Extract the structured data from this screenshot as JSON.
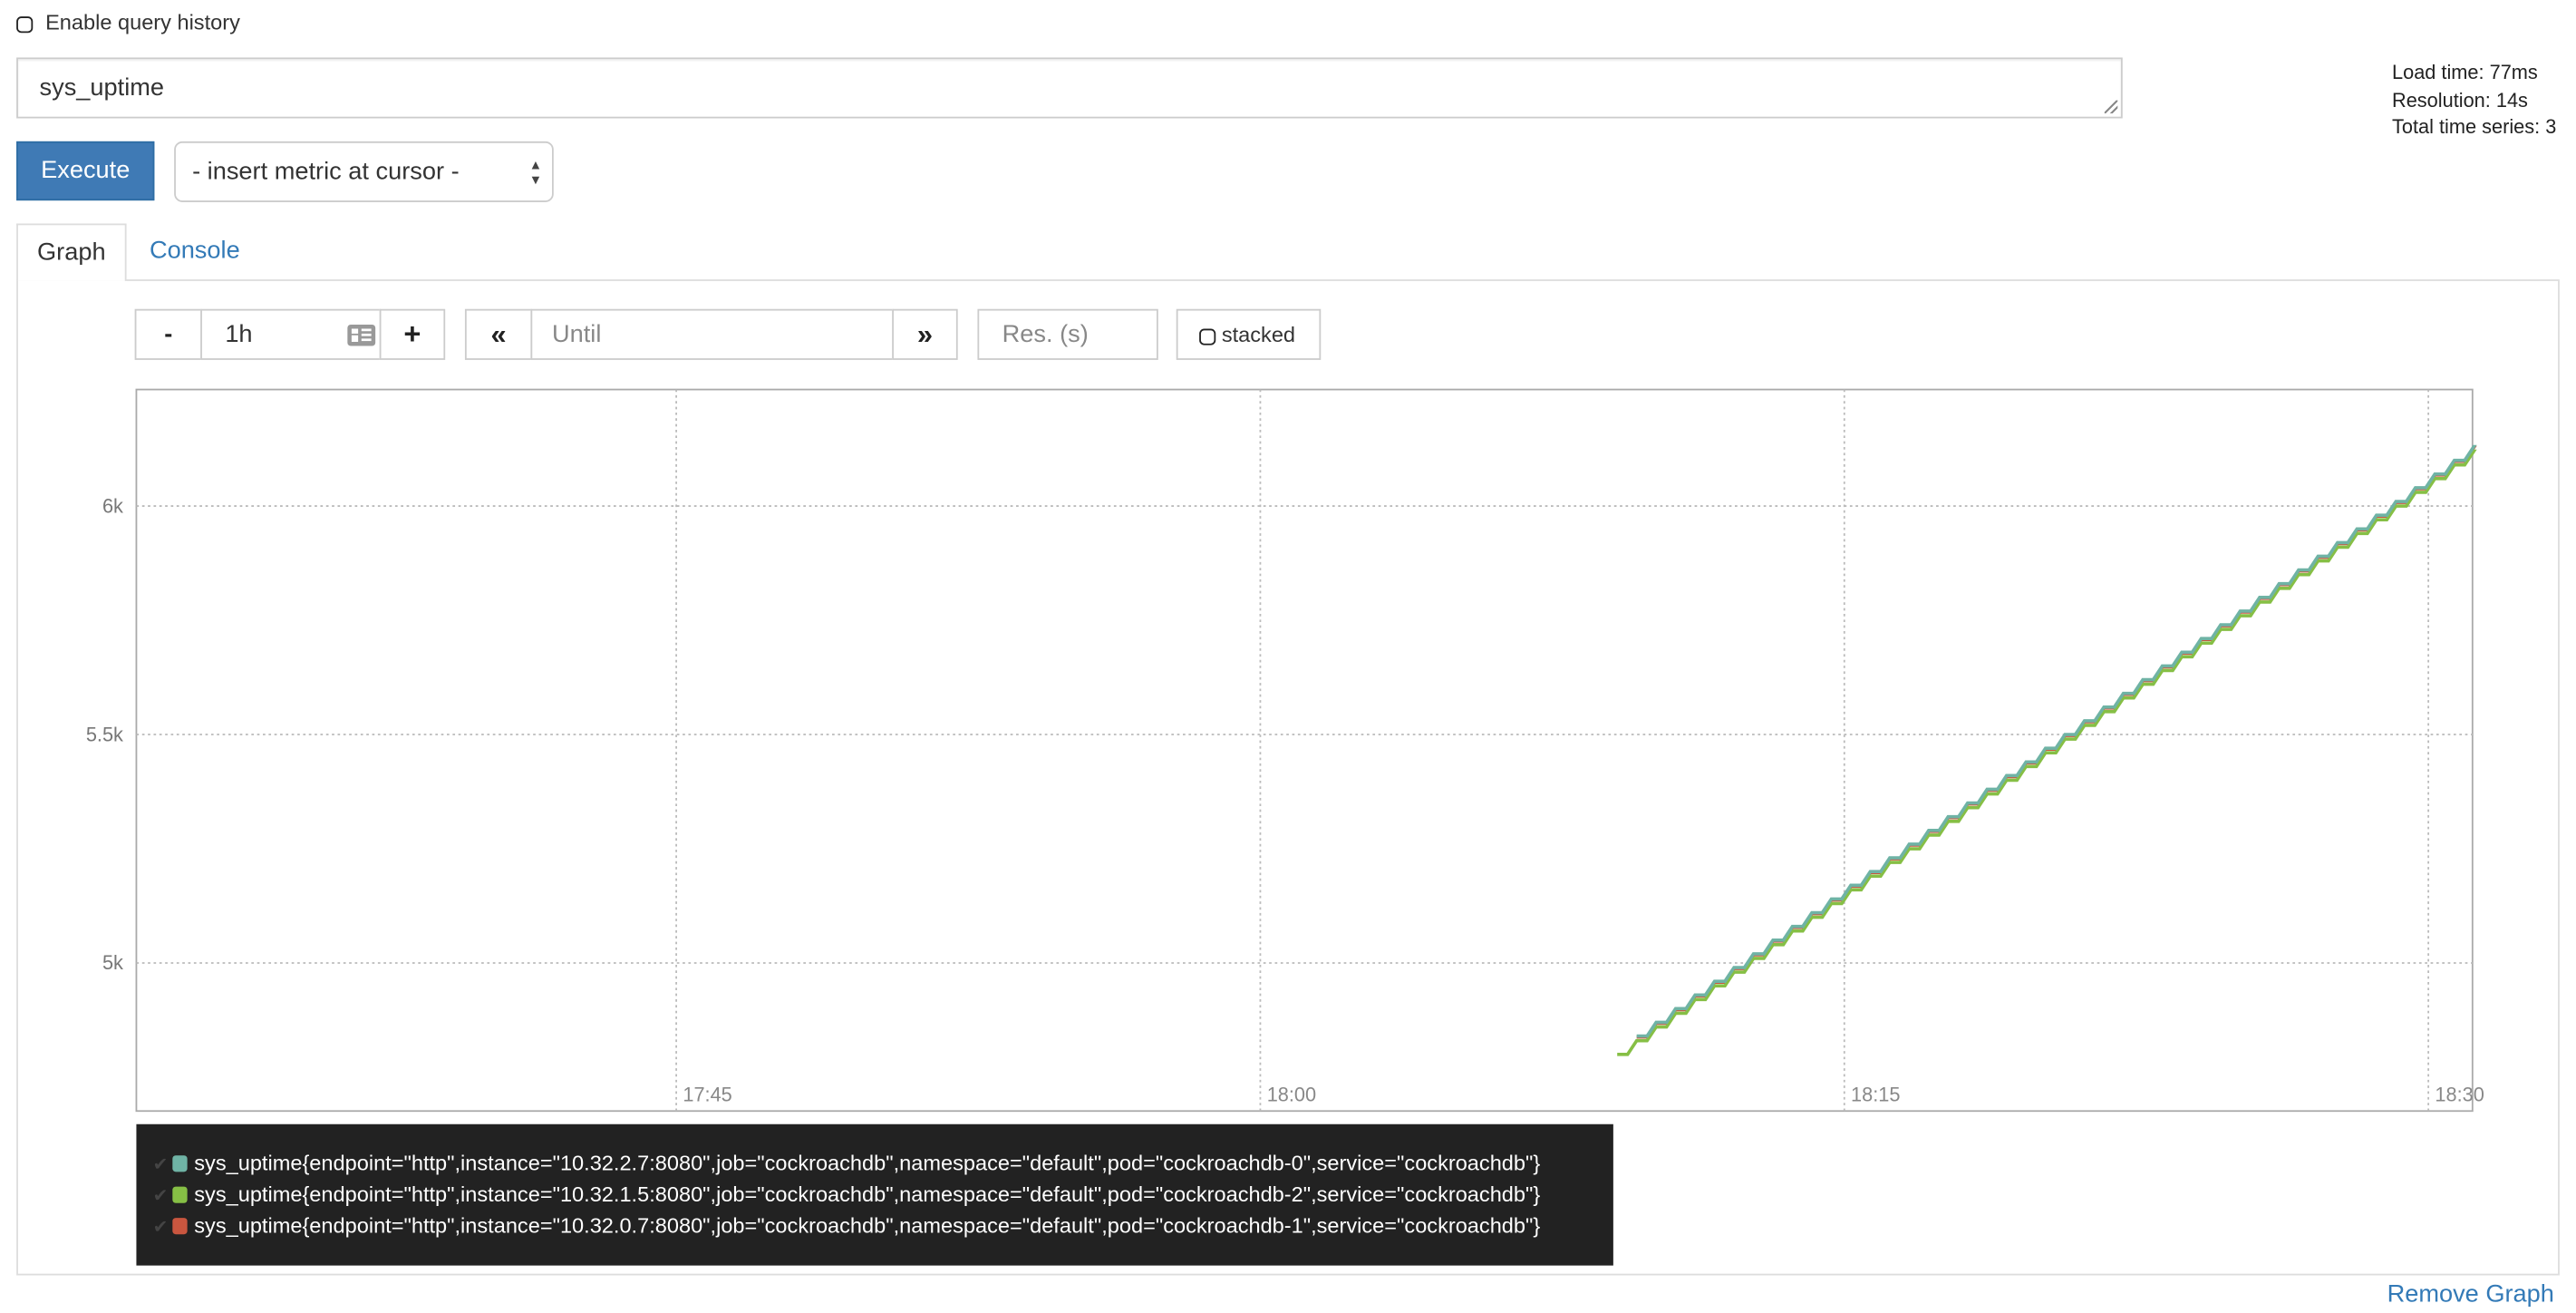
{
  "query_history": {
    "label": "Enable query history",
    "checked": false
  },
  "expression": {
    "value": "sys_uptime"
  },
  "stats": {
    "load_time": "Load time: 77ms",
    "resolution": "Resolution: 14s",
    "total_series": "Total time series: 3"
  },
  "execute_label": "Execute",
  "metric_select": {
    "selected": "- insert metric at cursor -"
  },
  "tabs": [
    {
      "label": "Graph",
      "active": true
    },
    {
      "label": "Console",
      "active": false
    }
  ],
  "graph_controls": {
    "minus": "-",
    "range": "1h",
    "plus": "+",
    "back": "«",
    "until_placeholder": "Until",
    "forward": "»",
    "res_placeholder": "Res. (s)",
    "stacked_label": "stacked",
    "stacked_checked": false
  },
  "chart_data": {
    "type": "line",
    "ylim": [
      4676,
      6255
    ],
    "xlim": [
      "17:31:08",
      "18:31:08"
    ],
    "yticks": [
      "5k",
      "5.5k",
      "6k"
    ],
    "ytick_values": [
      5000,
      5500,
      6000
    ],
    "xticks": [
      "17:45",
      "18:00",
      "18:15",
      "18:30"
    ],
    "grid": true,
    "x": [
      "18:09:10",
      "18:09:40",
      "18:10:10",
      "18:10:40",
      "18:11:10",
      "18:11:40",
      "18:12:10",
      "18:12:40",
      "18:13:10",
      "18:13:40",
      "18:14:10",
      "18:14:40",
      "18:15:10",
      "18:15:40",
      "18:16:10",
      "18:16:40",
      "18:17:10",
      "18:17:40",
      "18:18:10",
      "18:18:40",
      "18:19:10",
      "18:19:40",
      "18:20:10",
      "18:20:40",
      "18:21:10",
      "18:21:40",
      "18:22:10",
      "18:22:40",
      "18:23:10",
      "18:23:40",
      "18:24:10",
      "18:24:40",
      "18:25:10",
      "18:25:40",
      "18:26:10",
      "18:26:40",
      "18:27:10",
      "18:27:40",
      "18:28:10",
      "18:28:40",
      "18:29:10",
      "18:29:40",
      "18:30:10",
      "18:30:40",
      "18:31:10"
    ],
    "series": [
      {
        "name": "sys_uptime{endpoint=\"http\",instance=\"10.32.2.7:8080\",job=\"cockroachdb\",namespace=\"default\",pod=\"cockroachdb-0\",service=\"cockroachdb\"}",
        "color": "#6fb3a5",
        "values": [
          null,
          4840,
          4870,
          4900,
          4930,
          4960,
          4990,
          5020,
          5050,
          5080,
          5110,
          5140,
          5170,
          5200,
          5230,
          5260,
          5290,
          5320,
          5350,
          5380,
          5410,
          5440,
          5470,
          5500,
          5530,
          5560,
          5590,
          5620,
          5650,
          5680,
          5710,
          5740,
          5770,
          5800,
          5830,
          5860,
          5890,
          5920,
          5950,
          5980,
          6010,
          6040,
          6070,
          6100,
          6130
        ]
      },
      {
        "name": "sys_uptime{endpoint=\"http\",instance=\"10.32.1.5:8080\",job=\"cockroachdb\",namespace=\"default\",pod=\"cockroachdb-2\",service=\"cockroachdb\"}",
        "color": "#86bf45",
        "values": [
          4800,
          4830,
          4860,
          4890,
          4920,
          4950,
          4980,
          5010,
          5040,
          5070,
          5100,
          5130,
          5160,
          5190,
          5220,
          5250,
          5280,
          5310,
          5340,
          5370,
          5400,
          5430,
          5460,
          5490,
          5520,
          5550,
          5580,
          5610,
          5640,
          5670,
          5700,
          5730,
          5760,
          5790,
          5820,
          5850,
          5880,
          5910,
          5940,
          5970,
          6000,
          6030,
          6060,
          6090,
          6120
        ]
      },
      {
        "name": "sys_uptime{endpoint=\"http\",instance=\"10.32.0.7:8080\",job=\"cockroachdb\",namespace=\"default\",pod=\"cockroachdb-1\",service=\"cockroachdb\"}",
        "color": "#c9563f",
        "values": [
          null,
          4838,
          4868,
          4898,
          4928,
          4958,
          4988,
          5018,
          5048,
          5078,
          5108,
          5138,
          5168,
          5198,
          5228,
          5258,
          5288,
          5318,
          5348,
          5378,
          5408,
          5438,
          5468,
          5498,
          5528,
          5558,
          5588,
          5618,
          5648,
          5678,
          5708,
          5738,
          5768,
          5798,
          5828,
          5858,
          5888,
          5918,
          5948,
          5978,
          6008,
          6038,
          6068,
          6098,
          6128
        ]
      }
    ]
  },
  "legend_order": [
    0,
    1,
    2
  ],
  "remove_graph_label": "Remove Graph"
}
